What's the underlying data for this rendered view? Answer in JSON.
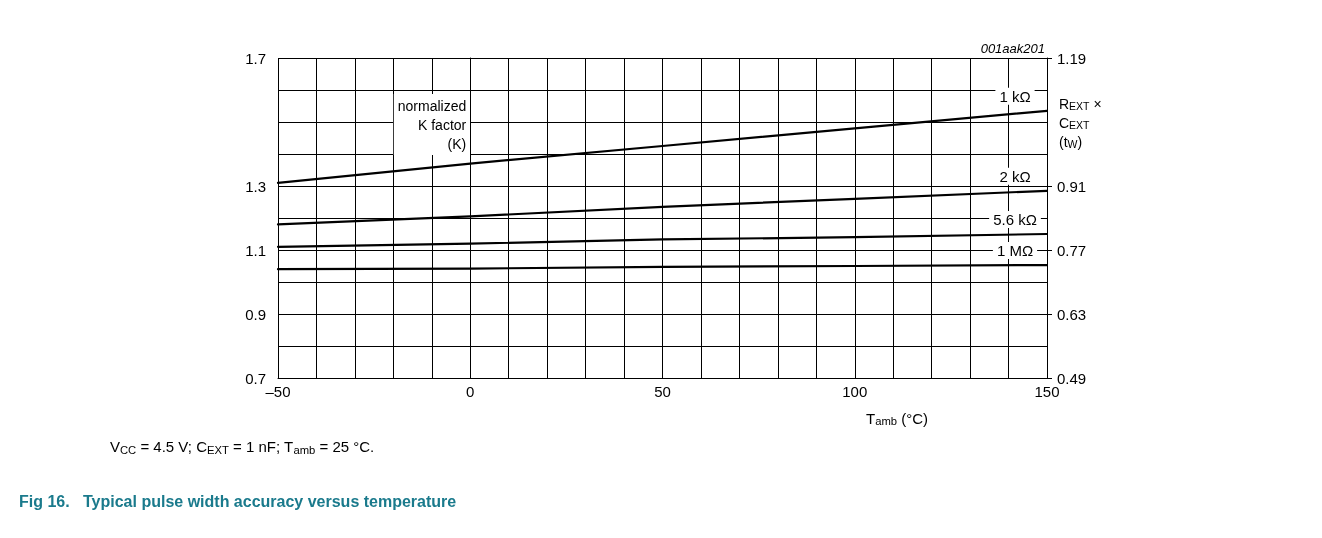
{
  "chart_data": {
    "type": "line",
    "title": "Fig 16.   Typical pulse width accuracy versus temperature",
    "xlabel": "T$_{amb}$ (°C)",
    "ylabel": "normalized\nK factor\n(K)",
    "y2label": "R$_{EXT}$ ×\nC$_{EXT}$\n(t$_{W}$)",
    "annotations": [
      "001aak201",
      "V$_{CC}$ = 4.5 V; C$_{EXT}$ = 1 nF; T$_{amb}$ = 25 °C."
    ],
    "x": [
      -50,
      0,
      50,
      100,
      150
    ],
    "series": [
      {
        "name": "1 kΩ",
        "color": "#000000",
        "values": [
          1.31,
          1.37,
          1.425,
          1.48,
          1.535
        ]
      },
      {
        "name": "2 kΩ",
        "color": "#000000",
        "values": [
          1.18,
          1.205,
          1.235,
          1.26,
          1.285
        ]
      },
      {
        "name": "5.6 kΩ",
        "color": "#000000",
        "values": [
          1.11,
          1.12,
          1.133,
          1.14,
          1.15
        ]
      },
      {
        "name": "1 MΩ",
        "color": "#000000",
        "values": [
          1.04,
          1.042,
          1.047,
          1.05,
          1.053
        ]
      }
    ],
    "xlim": [
      -50,
      150
    ],
    "xticks": [
      {
        "value": -50,
        "label": "–50"
      },
      {
        "value": -40,
        "label": null
      },
      {
        "value": -30,
        "label": null
      },
      {
        "value": -20,
        "label": null
      },
      {
        "value": -10,
        "label": null
      },
      0,
      {
        "value": 10,
        "label": null
      },
      {
        "value": 20,
        "label": null
      },
      {
        "value": 30,
        "label": null
      },
      {
        "value": 40,
        "label": null
      },
      50,
      {
        "value": 60,
        "label": null
      },
      {
        "value": 70,
        "label": null
      },
      {
        "value": 80,
        "label": null
      },
      {
        "value": 90,
        "label": null
      },
      100,
      {
        "value": 110,
        "label": null
      },
      {
        "value": 120,
        "label": null
      },
      {
        "value": 130,
        "label": null
      },
      {
        "value": 140,
        "label": null
      },
      150
    ],
    "ylim": [
      0.7,
      1.7
    ],
    "yticks": [
      0.7,
      {
        "value": 0.8,
        "label": null
      },
      0.9,
      {
        "value": 1.0,
        "label": null
      },
      1.1,
      {
        "value": 1.2,
        "label": null
      },
      1.3,
      {
        "value": 1.4,
        "label": null
      },
      {
        "value": 1.5,
        "label": null
      },
      {
        "value": 1.6,
        "label": null
      },
      1.7
    ],
    "y2lim": [
      0.49,
      1.19
    ],
    "y2ticks": [
      0.49,
      0.63,
      0.77,
      0.91,
      1.19
    ],
    "grid": true,
    "legend": false,
    "marker": "none",
    "line_style": "solid"
  }
}
